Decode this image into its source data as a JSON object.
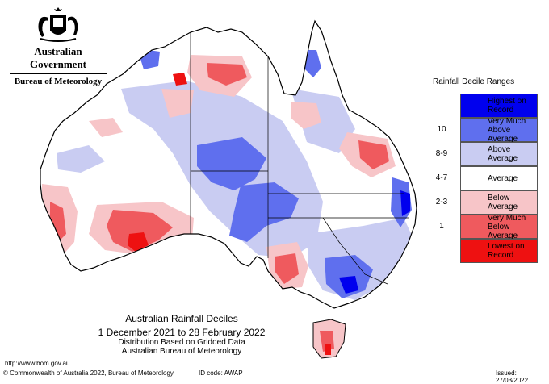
{
  "logo": {
    "government": "Australian Government",
    "bureau": "Bureau of Meteorology"
  },
  "legend": {
    "title": "Rainfall Decile Ranges",
    "items": [
      {
        "range": "",
        "label": "Highest on Record",
        "color": "#0000ee"
      },
      {
        "range": "10",
        "label": "Very Much Above Average",
        "color": "#5f6fee"
      },
      {
        "range": "8-9",
        "label": "Above Average",
        "color": "#c9ccf2"
      },
      {
        "range": "4-7",
        "label": "Average",
        "color": "#ffffff"
      },
      {
        "range": "2-3",
        "label": "Below Average",
        "color": "#f7c5c8"
      },
      {
        "range": "1",
        "label": "Very Much Below Average",
        "color": "#ef5a5e"
      },
      {
        "range": "",
        "label": "Lowest on Record",
        "color": "#ee1111"
      }
    ]
  },
  "title": {
    "line1": "Australian Rainfall Deciles",
    "line2": "1 December 2021 to 28 February 2022",
    "line3": "Distribution Based on Gridded Data",
    "line4": "Australian Bureau of Meteorology"
  },
  "footer": {
    "url": "http://www.bom.gov.au",
    "copyright": "© Commonwealth of Australia 2022, Bureau of Meteorology",
    "id_code": "ID code: AWAP",
    "issued": "Issued: 27/03/2022"
  }
}
